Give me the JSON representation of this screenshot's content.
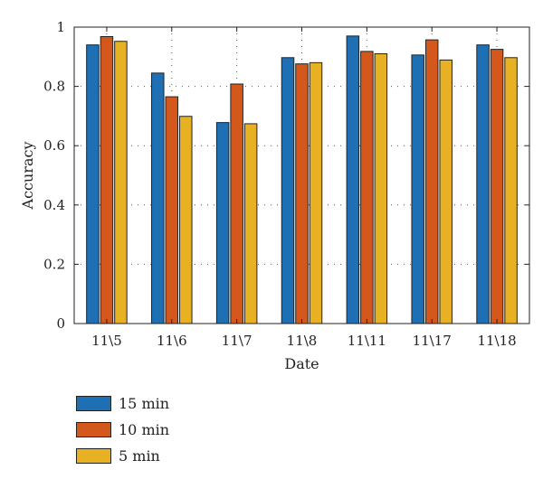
{
  "chart_data": {
    "type": "bar",
    "title": "",
    "xlabel": "Date",
    "ylabel": "Accuracy",
    "categories": [
      "11\\5",
      "11\\6",
      "11\\7",
      "11\\8",
      "11\\11",
      "11\\17",
      "11\\18"
    ],
    "yticks": [
      "0",
      "0.2",
      "0.4",
      "0.6",
      "0.8",
      "1"
    ],
    "ylim": [
      0,
      1
    ],
    "grid": "dotted",
    "legend_position": "bottom-left-outside",
    "series": [
      {
        "name": "15 min",
        "color": "#1f6fb5",
        "values": [
          0.94,
          0.845,
          0.678,
          0.897,
          0.97,
          0.906,
          0.94
        ]
      },
      {
        "name": "10 min",
        "color": "#d4581c",
        "values": [
          0.968,
          0.765,
          0.808,
          0.876,
          0.918,
          0.957,
          0.925
        ]
      },
      {
        "name": "5 min",
        "color": "#e8b124",
        "values": [
          0.952,
          0.699,
          0.674,
          0.88,
          0.91,
          0.889,
          0.897
        ]
      }
    ]
  }
}
